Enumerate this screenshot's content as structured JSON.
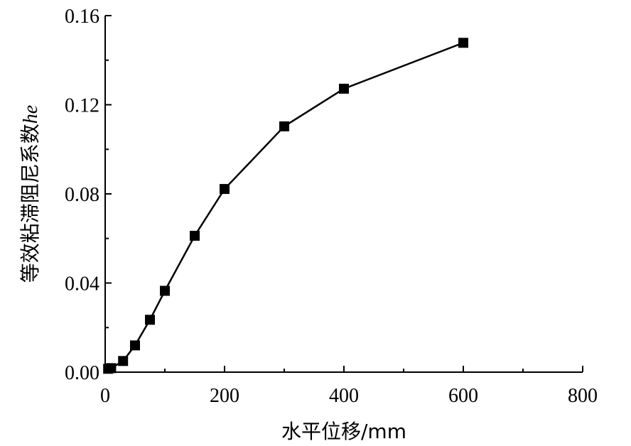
{
  "chart_data": {
    "type": "line",
    "title": "",
    "xlabel": "水平位移/mm",
    "ylabel_main": "等效粘滞阻尼系数",
    "ylabel_var": "he",
    "xlim": [
      0,
      800
    ],
    "ylim": [
      0,
      0.16
    ],
    "x_ticks": [
      0,
      200,
      400,
      600,
      800
    ],
    "y_ticks": [
      0.0,
      0.04,
      0.08,
      0.12,
      0.16
    ],
    "x_tick_labels": [
      "0",
      "200",
      "400",
      "600",
      "800"
    ],
    "y_tick_labels": [
      "0.00",
      "0.04",
      "0.08",
      "0.12",
      "0.16"
    ],
    "x_minor_ticks": [
      100,
      300,
      500,
      700
    ],
    "y_minor_ticks": [
      0.02,
      0.06,
      0.1,
      0.14
    ],
    "grid": false,
    "legend": "none",
    "series": [
      {
        "marker": "square",
        "color": "#000000",
        "x": [
          5,
          10,
          30,
          50,
          75,
          100,
          150,
          200,
          300,
          400,
          600
        ],
        "y": [
          0.0015,
          0.0018,
          0.005,
          0.012,
          0.0235,
          0.0365,
          0.0612,
          0.0822,
          0.1103,
          0.1272,
          0.1478
        ]
      }
    ]
  }
}
